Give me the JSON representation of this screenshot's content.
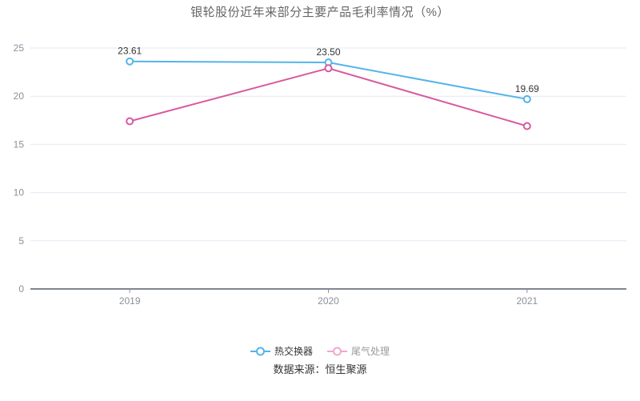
{
  "title": "银轮股份近年来部分主要产品毛利率情况（%）",
  "source": "数据来源：恒生聚源",
  "chart_data": {
    "type": "line",
    "categories": [
      "2019",
      "2020",
      "2021"
    ],
    "series": [
      {
        "name": "热交换器",
        "values": [
          23.61,
          23.5,
          19.69
        ],
        "labels": [
          "23.61",
          "23.50",
          "19.69"
        ],
        "show_labels": true,
        "color": "#54b4eb",
        "legend_marker_color": "#54b4eb",
        "legend_text_color": "#333333"
      },
      {
        "name": "尾气处理",
        "values": [
          17.4,
          22.9,
          16.9
        ],
        "labels": [],
        "show_labels": false,
        "color": "#d85a9d",
        "legend_marker_color": "#f2a6ce",
        "legend_text_color": "#999999"
      }
    ],
    "ylim": [
      0,
      25
    ],
    "yticks": [
      0,
      5,
      10,
      15,
      20,
      25
    ],
    "grid": true,
    "legend_position": "bottom",
    "xlabel": "",
    "ylabel": ""
  },
  "style": {
    "background": "#ffffff",
    "title_color": "#666666",
    "axis_line_color": "#565d6e",
    "grid_line_color": "#e2e8f2",
    "tick_color": "#8b909c",
    "tick_label_color": "#8b909c",
    "data_label_color": "#333333",
    "point_fill": "#ffffff"
  }
}
